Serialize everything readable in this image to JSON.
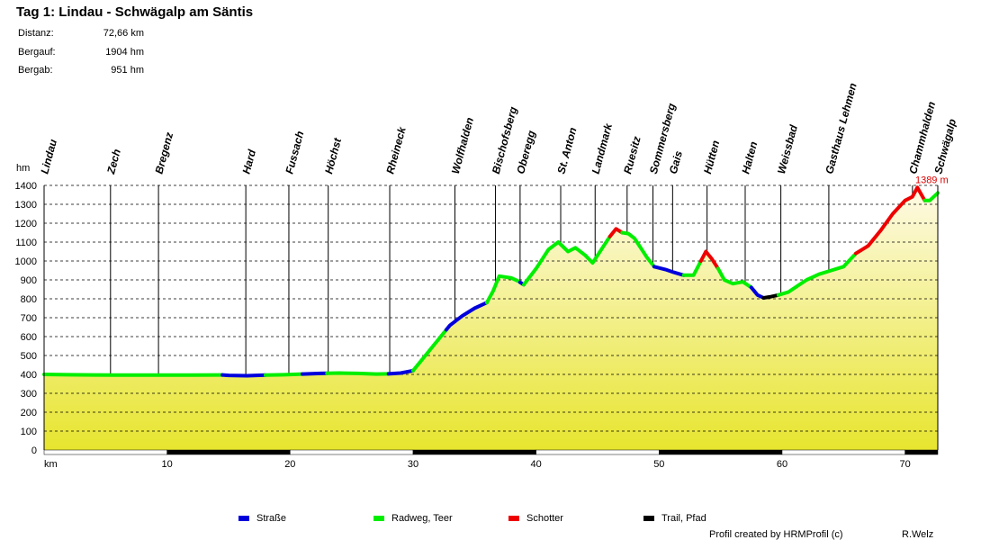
{
  "title": "Tag 1: Lindau - Schwägalp am Säntis",
  "stats": [
    {
      "label": "Distanz:",
      "value": "72,66 km"
    },
    {
      "label": "Bergauf:",
      "value": "1904 hm"
    },
    {
      "label": "Bergab:",
      "value": "951 hm"
    }
  ],
  "footer": {
    "credit": "Profil created by HRMProfil (c)",
    "author": "R.Welz"
  },
  "chart_data": {
    "type": "area",
    "ylabel": "hm",
    "xlabel": "km",
    "ylim": [
      0,
      1400
    ],
    "xlim": [
      0,
      72.66
    ],
    "yticks": [
      0,
      100,
      200,
      300,
      400,
      500,
      600,
      700,
      800,
      900,
      1000,
      1100,
      1200,
      1300,
      1400
    ],
    "xticks": [
      10,
      20,
      30,
      40,
      50,
      60,
      70
    ],
    "grid": true,
    "max_label": "1389 m",
    "colors": {
      "Straße": "#0000dd",
      "Radweg, Teer": "#00ee00",
      "Schotter": "#ee0000",
      "Trail, Pfad": "#000000",
      "fill_top": "#fefae6",
      "fill_bottom": "#e7e52e"
    },
    "profile": [
      [
        0,
        400
      ],
      [
        2,
        398
      ],
      [
        4,
        397
      ],
      [
        6,
        396
      ],
      [
        8,
        396
      ],
      [
        10,
        396
      ],
      [
        12,
        396
      ],
      [
        14.5,
        397
      ],
      [
        15,
        395
      ],
      [
        16.5,
        393
      ],
      [
        18,
        396
      ],
      [
        19.5,
        398
      ],
      [
        21,
        402
      ],
      [
        22.5,
        405
      ],
      [
        24,
        407
      ],
      [
        25.5,
        405
      ],
      [
        27,
        402
      ],
      [
        28,
        403
      ],
      [
        29,
        407
      ],
      [
        30,
        420
      ],
      [
        31,
        500
      ],
      [
        32,
        580
      ],
      [
        33,
        660
      ],
      [
        34,
        710
      ],
      [
        35,
        750
      ],
      [
        36,
        780
      ],
      [
        36.5,
        840
      ],
      [
        37,
        920
      ],
      [
        38,
        910
      ],
      [
        38.5,
        895
      ],
      [
        39,
        875
      ],
      [
        40,
        960
      ],
      [
        41,
        1060
      ],
      [
        41.8,
        1100
      ],
      [
        42.6,
        1050
      ],
      [
        43.2,
        1070
      ],
      [
        44,
        1030
      ],
      [
        44.6,
        990
      ],
      [
        45.5,
        1080
      ],
      [
        46,
        1130
      ],
      [
        46.5,
        1170
      ],
      [
        47,
        1150
      ],
      [
        47.5,
        1145
      ],
      [
        48,
        1120
      ],
      [
        49,
        1020
      ],
      [
        49.6,
        970
      ],
      [
        50.5,
        955
      ],
      [
        51.2,
        940
      ],
      [
        52,
        925
      ],
      [
        52.8,
        925
      ],
      [
        53.4,
        1000
      ],
      [
        53.8,
        1050
      ],
      [
        54.3,
        1010
      ],
      [
        54.8,
        960
      ],
      [
        55.3,
        900
      ],
      [
        56,
        880
      ],
      [
        56.8,
        890
      ],
      [
        57.5,
        860
      ],
      [
        58,
        820
      ],
      [
        58.5,
        805
      ],
      [
        59,
        810
      ],
      [
        59.7,
        820
      ],
      [
        60.5,
        835
      ],
      [
        61.3,
        870
      ],
      [
        62,
        900
      ],
      [
        63,
        930
      ],
      [
        64,
        950
      ],
      [
        65,
        970
      ],
      [
        66,
        1040
      ],
      [
        67,
        1080
      ],
      [
        68,
        1160
      ],
      [
        69,
        1250
      ],
      [
        70,
        1320
      ],
      [
        70.6,
        1340
      ],
      [
        71,
        1389
      ],
      [
        71.6,
        1320
      ],
      [
        72,
        1320
      ],
      [
        72.66,
        1360
      ]
    ],
    "surface_segments": [
      {
        "type": "Radweg, Teer",
        "from": 0,
        "to": 14.5
      },
      {
        "type": "Straße",
        "from": 14.5,
        "to": 18
      },
      {
        "type": "Radweg, Teer",
        "from": 18,
        "to": 21
      },
      {
        "type": "Straße",
        "from": 21,
        "to": 23
      },
      {
        "type": "Radweg, Teer",
        "from": 23,
        "to": 28
      },
      {
        "type": "Straße",
        "from": 28,
        "to": 30
      },
      {
        "type": "Radweg, Teer",
        "from": 30,
        "to": 32.7
      },
      {
        "type": "Straße",
        "from": 32.7,
        "to": 36
      },
      {
        "type": "Radweg, Teer",
        "from": 36,
        "to": 38.7
      },
      {
        "type": "Straße",
        "from": 38.7,
        "to": 39
      },
      {
        "type": "Radweg, Teer",
        "from": 39,
        "to": 46
      },
      {
        "type": "Schotter",
        "from": 46,
        "to": 47
      },
      {
        "type": "Radweg, Teer",
        "from": 47,
        "to": 49.6
      },
      {
        "type": "Straße",
        "from": 49.6,
        "to": 52
      },
      {
        "type": "Radweg, Teer",
        "from": 52,
        "to": 53.4
      },
      {
        "type": "Schotter",
        "from": 53.4,
        "to": 54.8
      },
      {
        "type": "Radweg, Teer",
        "from": 54.8,
        "to": 57.5
      },
      {
        "type": "Straße",
        "from": 57.5,
        "to": 58.5
      },
      {
        "type": "Trail, Pfad",
        "from": 58.5,
        "to": 59.7
      },
      {
        "type": "Radweg, Teer",
        "from": 59.7,
        "to": 66
      },
      {
        "type": "Schotter",
        "from": 66,
        "to": 71.6
      },
      {
        "type": "Radweg, Teer",
        "from": 71.6,
        "to": 72.66
      }
    ],
    "waypoints": [
      {
        "name": "Lindau",
        "km": 0
      },
      {
        "name": "Zech",
        "km": 5.4
      },
      {
        "name": "Bregenz",
        "km": 9.3
      },
      {
        "name": "Hard",
        "km": 16.4
      },
      {
        "name": "Fussach",
        "km": 19.9
      },
      {
        "name": "Höchst",
        "km": 23.1
      },
      {
        "name": "Rheineck",
        "km": 28.1
      },
      {
        "name": "Wolfhalden",
        "km": 33.4
      },
      {
        "name": "Bischofsberg",
        "km": 36.7
      },
      {
        "name": "Oberegg",
        "km": 38.7
      },
      {
        "name": "St. Anton",
        "km": 42
      },
      {
        "name": "Landmark",
        "km": 44.8
      },
      {
        "name": "Ruesitz",
        "km": 47.4
      },
      {
        "name": "Sommersberg",
        "km": 49.5
      },
      {
        "name": "Gais",
        "km": 51.1
      },
      {
        "name": "Hütten",
        "km": 53.9
      },
      {
        "name": "Halten",
        "km": 57
      },
      {
        "name": "Weissbad",
        "km": 59.9
      },
      {
        "name": "Gasthaus Lehmen",
        "km": 63.8
      },
      {
        "name": "Chammhalden",
        "km": 70.6
      },
      {
        "name": "Schwägalp",
        "km": 72.66
      }
    ],
    "legend": [
      {
        "label": "Straße",
        "color": "#0000dd"
      },
      {
        "label": "Radweg, Teer",
        "color": "#00ee00"
      },
      {
        "label": "Schotter",
        "color": "#ee0000"
      },
      {
        "label": "Trail, Pfad",
        "color": "#000000"
      }
    ]
  }
}
